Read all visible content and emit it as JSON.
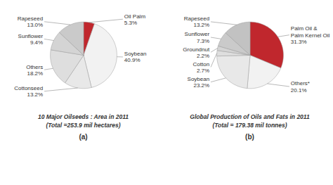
{
  "chart_data": [
    {
      "type": "pie",
      "title": "10 Major Oilseeds : Area in 2011\n(Total =253.9 mil hectares)",
      "subtitle": "(a)",
      "categories": [
        "Oil Palm",
        "Soybean",
        "Cottonseed",
        "Others",
        "Sunflower",
        "Rapeseed"
      ],
      "values": [
        5.3,
        40.9,
        13.2,
        18.2,
        9.4,
        13.0
      ],
      "value_labels": [
        "5.3%",
        "40.9%",
        "13.2%",
        "18.2%",
        "9.4%",
        "13.0%"
      ],
      "colors": [
        "#c0272d",
        "#f2f2f2",
        "#e8e8e8",
        "#dedede",
        "#d4d4d4",
        "#cacaca"
      ],
      "data_labels": true
    },
    {
      "type": "pie",
      "title": "Global Production of Oils and Fats in 2011\n(Total = 179.38 mil tonnes)",
      "subtitle": "(b)",
      "categories": [
        "Palm Oil &\nPalm Kernel Oil",
        "Others*",
        "Soybean",
        "Cotton",
        "Groundnut",
        "Sunflower",
        "Rapeseed"
      ],
      "values": [
        31.3,
        20.1,
        23.2,
        2.7,
        2.2,
        7.3,
        13.2
      ],
      "value_labels": [
        "31.3%",
        "20.1%",
        "23.2%",
        "2.7%",
        "2.2%",
        "7.3%",
        "13.2%"
      ],
      "colors": [
        "#c0272d",
        "#f2f2f2",
        "#e8e8e8",
        "#dedede",
        "#d4d4d4",
        "#cacaca",
        "#c2c2c2"
      ],
      "data_labels": true
    }
  ]
}
